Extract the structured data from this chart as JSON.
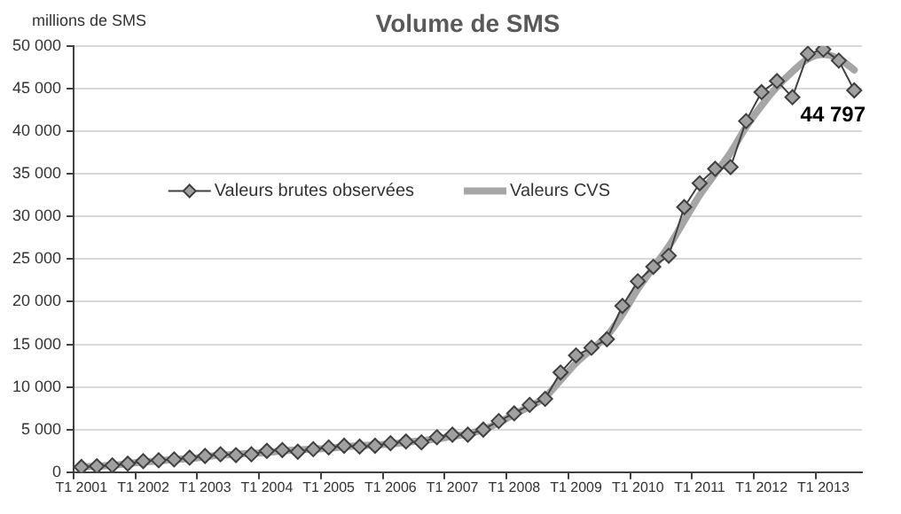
{
  "chart_data": {
    "type": "line",
    "title": "Volume de SMS",
    "ylabel": "millions de SMS",
    "categories": [
      "T1 2001",
      null,
      null,
      null,
      "T1 2002",
      null,
      null,
      null,
      "T1 2003",
      null,
      null,
      null,
      "T1 2004",
      null,
      null,
      null,
      "T1 2005",
      null,
      null,
      null,
      "T1 2006",
      null,
      null,
      null,
      "T1 2007",
      null,
      null,
      null,
      "T1 2008",
      null,
      null,
      null,
      "T1 2009",
      null,
      null,
      null,
      "T1 2010",
      null,
      null,
      null,
      "T1 2011",
      null,
      null,
      null,
      "T1 2012",
      null,
      null,
      null,
      "T1 2013",
      null,
      null
    ],
    "series": [
      {
        "name": "Valeurs brutes observées",
        "color": "#404040",
        "marker": "diamond",
        "values": [
          600,
          700,
          800,
          1000,
          1300,
          1400,
          1500,
          1700,
          1900,
          2100,
          2000,
          2100,
          2500,
          2600,
          2400,
          2700,
          2900,
          3100,
          3000,
          3100,
          3400,
          3600,
          3500,
          4100,
          4400,
          4400,
          5000,
          6000,
          6900,
          7900,
          8600,
          11700,
          13700,
          14600,
          15600,
          19500,
          22400,
          24100,
          25400,
          31100,
          33900,
          35600,
          35800,
          41200,
          44600,
          45900,
          44000,
          49100,
          49600,
          48300,
          44797
        ],
        "value_labels": [
          null,
          null,
          null,
          null,
          null,
          null,
          null,
          null,
          null,
          null,
          null,
          null,
          null,
          null,
          null,
          null,
          null,
          null,
          null,
          null,
          null,
          null,
          null,
          null,
          null,
          null,
          null,
          null,
          null,
          null,
          null,
          null,
          null,
          null,
          null,
          null,
          null,
          null,
          null,
          null,
          null,
          null,
          null,
          null,
          null,
          null,
          null,
          null,
          null,
          null,
          "44 797"
        ]
      },
      {
        "name": "Valeurs CVS",
        "color": "#a6a6a6",
        "marker": "none",
        "values": [
          600,
          700,
          800,
          1000,
          1200,
          1300,
          1500,
          1600,
          1800,
          2000,
          2100,
          2200,
          2300,
          2500,
          2600,
          2700,
          2800,
          3000,
          3100,
          3200,
          3300,
          3500,
          3700,
          3900,
          4200,
          4500,
          5000,
          5800,
          6800,
          7700,
          8800,
          10800,
          12800,
          14400,
          16000,
          18500,
          21500,
          24000,
          26500,
          29500,
          32500,
          35000,
          37500,
          40500,
          43000,
          45200,
          47000,
          48500,
          49000,
          48500,
          47200
        ]
      }
    ],
    "ylim": [
      0,
      50000
    ],
    "yticks": [
      0,
      {
        "value": 5000,
        "label": "5 000"
      },
      {
        "value": 10000,
        "label": "10 000"
      },
      {
        "value": 15000,
        "label": "15 000"
      },
      {
        "value": 20000,
        "label": "20 000"
      },
      {
        "value": 25000,
        "label": "25 000"
      },
      {
        "value": 30000,
        "label": "30 000"
      },
      {
        "value": 35000,
        "label": "35 000"
      },
      {
        "value": 40000,
        "label": "40 000"
      },
      {
        "value": 45000,
        "label": "45 000"
      },
      {
        "value": 50000,
        "label": "50 000"
      }
    ],
    "grid": "y",
    "legend": "left"
  }
}
